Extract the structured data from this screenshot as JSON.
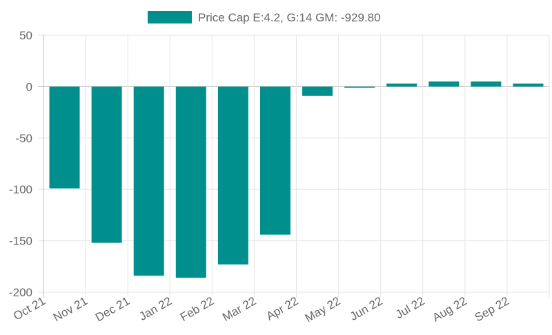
{
  "chart_data": {
    "type": "bar",
    "legend": {
      "label": "Price Cap E:4.2, G:14 GM: -929.80",
      "color": "#008f8c",
      "placement": "top-center"
    },
    "categories": [
      "Oct 21",
      "Nov 21",
      "Dec 21",
      "Jan 22",
      "Feb 22",
      "Mar 22",
      "Apr 22",
      "May 22",
      "Jun 22",
      "Jul 22",
      "Aug 22",
      "Sep 22"
    ],
    "series": [
      {
        "name": "Price Cap E:4.2, G:14 GM: -929.80",
        "color": "#008f8c",
        "values": [
          -99,
          -152,
          -184,
          -186,
          -173,
          -144,
          -9,
          -1,
          3,
          5,
          5,
          3
        ]
      }
    ],
    "yticks": [
      50,
      0,
      -50,
      -100,
      -150,
      -200
    ],
    "ylim": [
      -200,
      50
    ],
    "grid": true,
    "colors": {
      "bar": "#008f8c",
      "grid": "#e5e5e5",
      "text": "#666666"
    }
  }
}
